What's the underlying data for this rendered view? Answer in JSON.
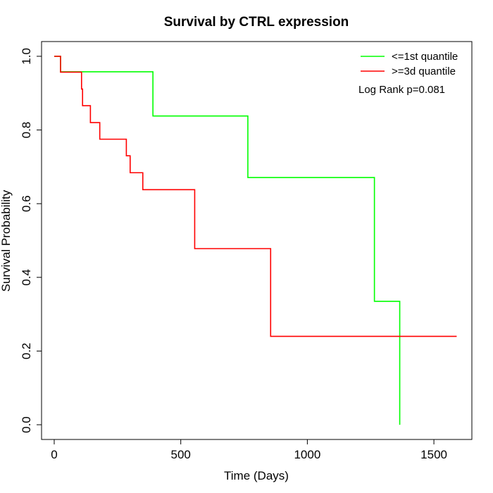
{
  "chart_data": {
    "type": "line",
    "title": "Survival by CTRL expression",
    "xlabel": "Time (Days)",
    "ylabel": "Survival Probability",
    "xlim": [
      -50,
      1650
    ],
    "ylim": [
      -0.04,
      1.04
    ],
    "x_ticks": [
      0,
      500,
      1000,
      1500
    ],
    "y_ticks": [
      0.0,
      0.2,
      0.4,
      0.6,
      0.8,
      1.0
    ],
    "x_tick_labels": [
      "0",
      "500",
      "1000",
      "1500"
    ],
    "y_tick_labels": [
      "0.0",
      "0.2",
      "0.4",
      "0.6",
      "0.8",
      "1.0"
    ],
    "legend_position": "top-right",
    "annotation": "Log Rank p=0.081",
    "series": [
      {
        "name": "<=1st quantile",
        "color": "#00ff00",
        "step": true,
        "x": [
          0,
          25,
          390,
          765,
          1265,
          1365
        ],
        "y": [
          1.0,
          0.958,
          0.838,
          0.671,
          0.335,
          0.0
        ]
      },
      {
        "name": ">=3d quantile",
        "color": "#ff0000",
        "step": true,
        "x": [
          0,
          25,
          108,
          112,
          143,
          180,
          285,
          300,
          350,
          555,
          855,
          1590
        ],
        "y": [
          1.0,
          0.957,
          0.911,
          0.866,
          0.82,
          0.775,
          0.73,
          0.684,
          0.638,
          0.478,
          0.24,
          0.24
        ]
      }
    ]
  }
}
